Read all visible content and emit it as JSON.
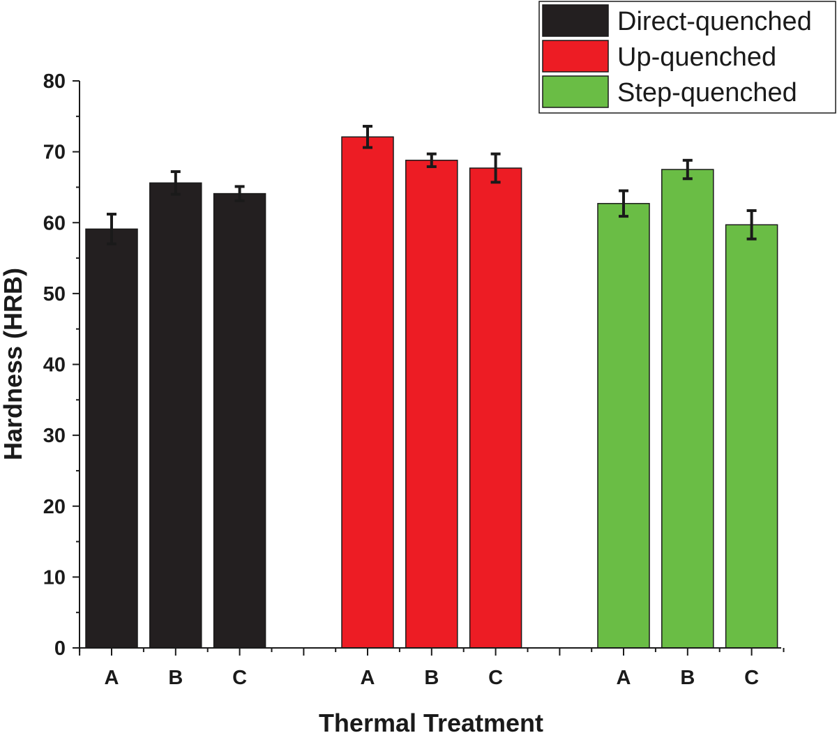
{
  "chart_data": {
    "type": "bar",
    "title": "",
    "xlabel": "Thermal Treatment",
    "ylabel": "Hardness (HRB)",
    "ylim": [
      0,
      80
    ],
    "yticks": [
      0,
      10,
      20,
      30,
      40,
      50,
      60,
      70,
      80
    ],
    "categories": [
      "A",
      "B",
      "C"
    ],
    "series": [
      {
        "name": "Direct-quenched",
        "color": "#231f20",
        "values": [
          59.1,
          65.6,
          64.1
        ],
        "errors": [
          2.1,
          1.6,
          1.0
        ]
      },
      {
        "name": "Up-quenched",
        "color": "#ed1c24",
        "values": [
          72.1,
          68.8,
          67.7
        ],
        "errors": [
          1.5,
          0.9,
          2.0
        ]
      },
      {
        "name": "Step-quenched",
        "color": "#6abd45",
        "values": [
          62.7,
          67.5,
          59.7
        ],
        "errors": [
          1.8,
          1.3,
          2.0
        ]
      }
    ],
    "legend_position": "top-right"
  }
}
